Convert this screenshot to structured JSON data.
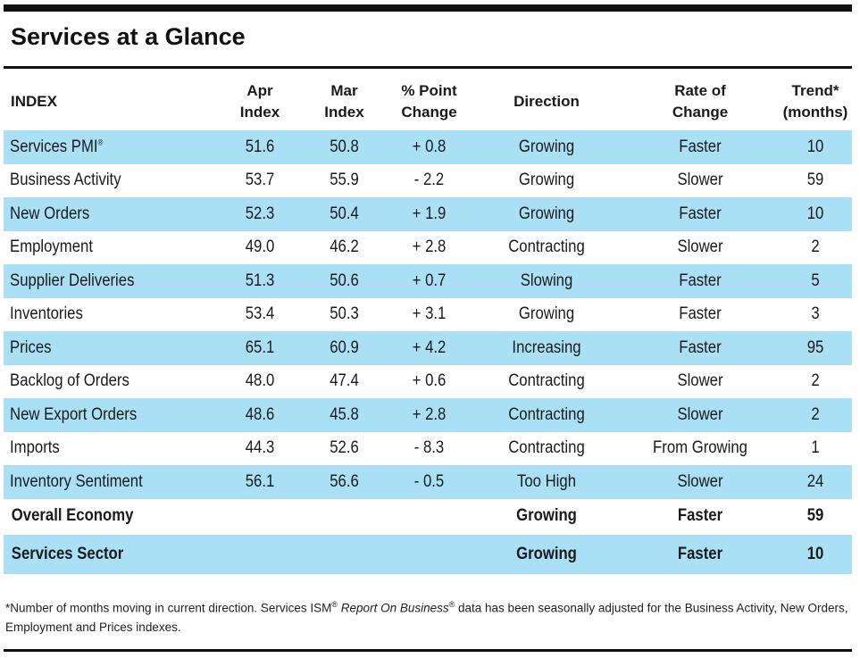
{
  "title": "Services at a Glance",
  "headers": {
    "index": "INDEX",
    "apr_line1": "Apr",
    "apr_line2": "Index",
    "mar_line1": "Mar",
    "mar_line2": "Index",
    "pct_line1": "% Point",
    "pct_line2": "Change",
    "direction": "Direction",
    "rate_line1": "Rate of",
    "rate_line2": "Change",
    "trend_line1": "Trend*",
    "trend_line2": "(months)"
  },
  "rows": [
    {
      "name": "Services PMI",
      "apr": "51.6",
      "mar": "50.8",
      "change": "+ 0.8",
      "direction": "Growing",
      "rate": "Faster",
      "trend": "10"
    },
    {
      "name": "Business Activity",
      "apr": "53.7",
      "mar": "55.9",
      "change": "- 2.2",
      "direction": "Growing",
      "rate": "Slower",
      "trend": "59"
    },
    {
      "name": "New Orders",
      "apr": "52.3",
      "mar": "50.4",
      "change": "+ 1.9",
      "direction": "Growing",
      "rate": "Faster",
      "trend": "10"
    },
    {
      "name": "Employment",
      "apr": "49.0",
      "mar": "46.2",
      "change": "+ 2.8",
      "direction": "Contracting",
      "rate": "Slower",
      "trend": "2"
    },
    {
      "name": "Supplier Deliveries",
      "apr": "51.3",
      "mar": "50.6",
      "change": "+ 0.7",
      "direction": "Slowing",
      "rate": "Faster",
      "trend": "5"
    },
    {
      "name": "Inventories",
      "apr": "53.4",
      "mar": "50.3",
      "change": "+ 3.1",
      "direction": "Growing",
      "rate": "Faster",
      "trend": "3"
    },
    {
      "name": "Prices",
      "apr": "65.1",
      "mar": "60.9",
      "change": "+ 4.2",
      "direction": "Increasing",
      "rate": "Faster",
      "trend": "95"
    },
    {
      "name": "Backlog of Orders",
      "apr": "48.0",
      "mar": "47.4",
      "change": "+ 0.6",
      "direction": "Contracting",
      "rate": "Slower",
      "trend": "2"
    },
    {
      "name": "New Export Orders",
      "apr": "48.6",
      "mar": "45.8",
      "change": "+ 2.8",
      "direction": "Contracting",
      "rate": "Slower",
      "trend": "2"
    },
    {
      "name": "Imports",
      "apr": "44.3",
      "mar": "52.6",
      "change": "- 8.3",
      "direction": "Contracting",
      "rate": "From Growing",
      "trend": "1"
    },
    {
      "name": "Inventory Sentiment",
      "apr": "56.1",
      "mar": "56.6",
      "change": "- 0.5",
      "direction": "Too High",
      "rate": "Slower",
      "trend": "24"
    }
  ],
  "summary": [
    {
      "name": "Overall Economy",
      "direction": "Growing",
      "rate": "Faster",
      "trend": "59"
    },
    {
      "name": "Services Sector",
      "direction": "Growing",
      "rate": "Faster",
      "trend": "10"
    }
  ],
  "registered_mark": "®",
  "footnote": {
    "part1": "*Number of months moving in current direction. Services ISM",
    "part2": "Report On Business",
    "part3": "data has been seasonally adjusted for the Business Activity, New Orders, Employment and Prices indexes."
  },
  "colors": {
    "stripe": "#a9e0f5",
    "rule": "#111111"
  }
}
